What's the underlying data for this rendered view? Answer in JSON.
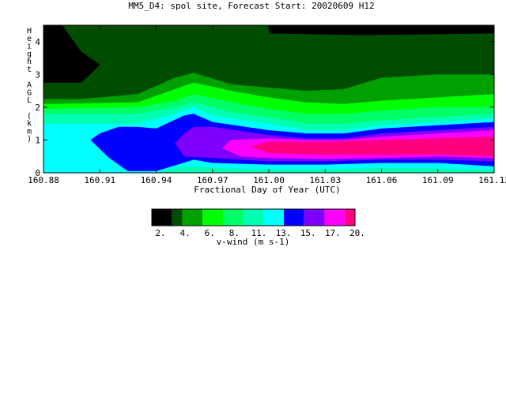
{
  "chart_data": {
    "type": "heatmap",
    "title": "MM5_D4: spol site,  Forecast Start: 20020609 H12",
    "xlabel": "Fractional Day of Year (UTC)",
    "ylabel": "Height AGL (km)",
    "xlim": [
      160.88,
      161.12
    ],
    "ylim": [
      0,
      4.5
    ],
    "x_ticks": [
      "160.88",
      "160.91",
      "160.94",
      "160.97",
      "161.00",
      "161.03",
      "161.06",
      "161.09",
      "161.12"
    ],
    "y_ticks": [
      "0",
      "1",
      "2",
      "3",
      "4"
    ],
    "colorbar": {
      "label": "v-wind (m s-1)",
      "tick_labels": [
        "2.",
        "4.",
        "6.",
        "8.",
        "11.",
        "13.",
        "15.",
        "17.",
        "20."
      ],
      "levels": [
        {
          "min": 0,
          "max": 2,
          "color": "#000000"
        },
        {
          "min": 2,
          "max": 3,
          "color": "#004d00"
        },
        {
          "min": 3,
          "max": 5,
          "color": "#00a000"
        },
        {
          "min": 5,
          "max": 7,
          "color": "#00ff00"
        },
        {
          "min": 7,
          "max": 9,
          "color": "#00ff66"
        },
        {
          "min": 9,
          "max": 11,
          "color": "#00ffb0"
        },
        {
          "min": 11,
          "max": 13,
          "color": "#00ffff"
        },
        {
          "min": 13,
          "max": 15,
          "color": "#0000ff"
        },
        {
          "min": 15,
          "max": 17,
          "color": "#8000ff"
        },
        {
          "min": 17,
          "max": 19,
          "color": "#ff00ff"
        },
        {
          "min": 19,
          "max": 20,
          "color": "#ff0080"
        }
      ]
    },
    "regions": [
      {
        "level": "2-3",
        "color": "#004d00",
        "points": [
          [
            160.88,
            4.5
          ],
          [
            161.12,
            4.5
          ],
          [
            161.12,
            0
          ],
          [
            160.88,
            0
          ]
        ]
      },
      {
        "level": "3-5",
        "color": "#00a000",
        "points": [
          [
            160.88,
            2.25
          ],
          [
            160.9,
            2.25
          ],
          [
            160.91,
            2.3
          ],
          [
            160.93,
            2.4
          ],
          [
            160.95,
            2.9
          ],
          [
            160.96,
            3.05
          ],
          [
            160.98,
            2.7
          ],
          [
            161.0,
            2.6
          ],
          [
            161.02,
            2.5
          ],
          [
            161.04,
            2.55
          ],
          [
            161.06,
            2.9
          ],
          [
            161.09,
            3.0
          ],
          [
            161.12,
            3.0
          ],
          [
            161.12,
            0
          ],
          [
            160.88,
            0
          ]
        ]
      },
      {
        "level": "5-7",
        "color": "#00ff00",
        "points": [
          [
            160.88,
            2.1
          ],
          [
            160.93,
            2.15
          ],
          [
            160.95,
            2.55
          ],
          [
            160.96,
            2.75
          ],
          [
            160.98,
            2.5
          ],
          [
            161.0,
            2.3
          ],
          [
            161.02,
            2.15
          ],
          [
            161.04,
            2.1
          ],
          [
            161.06,
            2.2
          ],
          [
            161.09,
            2.3
          ],
          [
            161.12,
            2.4
          ],
          [
            161.12,
            0
          ],
          [
            160.88,
            0
          ]
        ]
      },
      {
        "level": "7-9",
        "color": "#00ff66",
        "points": [
          [
            160.88,
            1.95
          ],
          [
            160.93,
            2.0
          ],
          [
            160.95,
            2.2
          ],
          [
            160.96,
            2.4
          ],
          [
            160.98,
            2.15
          ],
          [
            161.0,
            1.95
          ],
          [
            161.02,
            1.8
          ],
          [
            161.04,
            1.8
          ],
          [
            161.06,
            1.9
          ],
          [
            161.09,
            2.0
          ],
          [
            161.12,
            2.0
          ],
          [
            161.12,
            0
          ],
          [
            160.88,
            0
          ]
        ]
      },
      {
        "level": "9-11",
        "color": "#00ffb0",
        "points": [
          [
            160.88,
            1.8
          ],
          [
            160.93,
            1.8
          ],
          [
            160.95,
            2.0
          ],
          [
            160.96,
            2.15
          ],
          [
            160.98,
            1.85
          ],
          [
            161.0,
            1.7
          ],
          [
            161.02,
            1.5
          ],
          [
            161.04,
            1.5
          ],
          [
            161.06,
            1.6
          ],
          [
            161.09,
            1.7
          ],
          [
            161.12,
            1.8
          ],
          [
            161.12,
            0
          ],
          [
            160.88,
            0
          ]
        ]
      },
      {
        "level": "11-13",
        "color": "#00ffff",
        "points": [
          [
            160.88,
            1.5
          ],
          [
            160.93,
            1.5
          ],
          [
            160.95,
            1.8
          ],
          [
            160.96,
            2.0
          ],
          [
            160.97,
            1.75
          ],
          [
            161.0,
            1.5
          ],
          [
            161.02,
            1.3
          ],
          [
            161.04,
            1.3
          ],
          [
            161.06,
            1.45
          ],
          [
            161.09,
            1.55
          ],
          [
            161.12,
            1.65
          ],
          [
            161.12,
            0.1
          ],
          [
            161.06,
            0.15
          ],
          [
            161.03,
            0.1
          ],
          [
            161.0,
            0.1
          ],
          [
            160.97,
            0.15
          ],
          [
            160.96,
            0.2
          ],
          [
            160.95,
            0.15
          ],
          [
            160.94,
            0
          ],
          [
            160.88,
            0
          ]
        ]
      },
      {
        "level": "13-15",
        "color": "#0000ff",
        "points": [
          [
            160.905,
            1.0
          ],
          [
            160.91,
            1.2
          ],
          [
            160.92,
            1.4
          ],
          [
            160.93,
            1.4
          ],
          [
            160.94,
            1.35
          ],
          [
            160.955,
            1.75
          ],
          [
            160.96,
            1.8
          ],
          [
            160.97,
            1.55
          ],
          [
            161.0,
            1.3
          ],
          [
            161.02,
            1.2
          ],
          [
            161.04,
            1.2
          ],
          [
            161.06,
            1.35
          ],
          [
            161.09,
            1.45
          ],
          [
            161.12,
            1.55
          ],
          [
            161.12,
            0.2
          ],
          [
            161.09,
            0.3
          ],
          [
            161.06,
            0.3
          ],
          [
            161.03,
            0.25
          ],
          [
            161.0,
            0.25
          ],
          [
            160.97,
            0.3
          ],
          [
            160.96,
            0.4
          ],
          [
            160.94,
            0.05
          ],
          [
            160.925,
            0.05
          ],
          [
            160.915,
            0.45
          ]
        ]
      },
      {
        "level": "15-17",
        "color": "#8000ff",
        "points": [
          [
            160.95,
            0.9
          ],
          [
            160.955,
            1.2
          ],
          [
            160.96,
            1.4
          ],
          [
            160.97,
            1.4
          ],
          [
            161.0,
            1.15
          ],
          [
            161.02,
            1.05
          ],
          [
            161.04,
            1.05
          ],
          [
            161.06,
            1.2
          ],
          [
            161.09,
            1.3
          ],
          [
            161.12,
            1.4
          ],
          [
            161.12,
            0.35
          ],
          [
            161.09,
            0.4
          ],
          [
            161.06,
            0.4
          ],
          [
            161.03,
            0.35
          ],
          [
            161.0,
            0.35
          ],
          [
            160.97,
            0.45
          ],
          [
            160.955,
            0.5
          ]
        ]
      },
      {
        "level": "17-19",
        "color": "#ff00ff",
        "points": [
          [
            160.975,
            0.75
          ],
          [
            160.98,
            1.0
          ],
          [
            161.0,
            1.05
          ],
          [
            161.02,
            1.0
          ],
          [
            161.04,
            1.0
          ],
          [
            161.06,
            1.1
          ],
          [
            161.09,
            1.2
          ],
          [
            161.12,
            1.3
          ],
          [
            161.12,
            0.45
          ],
          [
            161.09,
            0.5
          ],
          [
            161.06,
            0.45
          ],
          [
            161.03,
            0.42
          ],
          [
            161.0,
            0.45
          ],
          [
            160.985,
            0.5
          ]
        ]
      },
      {
        "level": "19-20",
        "color": "#ff0080",
        "points": [
          [
            160.99,
            0.8
          ],
          [
            161.0,
            0.95
          ],
          [
            161.03,
            0.95
          ],
          [
            161.06,
            1.0
          ],
          [
            161.09,
            1.05
          ],
          [
            161.12,
            1.1
          ],
          [
            161.12,
            0.5
          ],
          [
            161.09,
            0.55
          ],
          [
            161.06,
            0.55
          ],
          [
            161.03,
            0.55
          ],
          [
            161.0,
            0.6
          ]
        ]
      },
      {
        "level": "0-2",
        "color": "#000000",
        "points": [
          [
            160.88,
            4.5
          ],
          [
            160.89,
            4.5
          ],
          [
            160.895,
            4.1
          ],
          [
            160.9,
            3.7
          ],
          [
            160.91,
            3.3
          ],
          [
            160.905,
            3.0
          ],
          [
            160.9,
            2.75
          ],
          [
            160.88,
            2.75
          ]
        ]
      },
      {
        "level": "0-2",
        "color": "#000000",
        "points": [
          [
            161.0,
            4.5
          ],
          [
            161.12,
            4.5
          ],
          [
            161.12,
            4.25
          ],
          [
            161.05,
            4.2
          ],
          [
            161.0,
            4.25
          ]
        ]
      }
    ]
  }
}
